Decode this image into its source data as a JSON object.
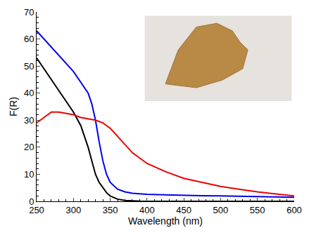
{
  "chart_data": {
    "type": "line",
    "x_label": "Wavelength (nm)",
    "y_label": "F(R)",
    "x": [
      250,
      260,
      270,
      280,
      290,
      300,
      310,
      320,
      325,
      330,
      335,
      340,
      345,
      350,
      360,
      370,
      380,
      390,
      400,
      425,
      450,
      475,
      500,
      525,
      550,
      575,
      600
    ],
    "series": [
      {
        "color": "#000000",
        "values": [
          53,
          49,
          45,
          41,
          37,
          33,
          28,
          20,
          15,
          10,
          7,
          5,
          3.2,
          2,
          0.8,
          0.3,
          0.1,
          0.05,
          0,
          0,
          0,
          0,
          0,
          0,
          0,
          0,
          0
        ]
      },
      {
        "color": "#0000ee",
        "values": [
          63,
          60,
          57,
          54,
          51,
          48,
          44,
          40,
          36,
          30,
          22,
          15,
          10,
          7,
          4.5,
          3.5,
          3,
          2.8,
          2.6,
          2.4,
          2.2,
          2.1,
          2,
          1.9,
          1.8,
          1.6,
          1.5
        ]
      },
      {
        "color": "#ee0000",
        "values": [
          29,
          31,
          33,
          33,
          32.5,
          32,
          31,
          30.5,
          30.2,
          30,
          29.5,
          29,
          28,
          27,
          24,
          21,
          18,
          16,
          14,
          11,
          8.5,
          7,
          5.5,
          4.5,
          3.5,
          2.7,
          2
        ]
      }
    ],
    "xlim": [
      250,
      600
    ],
    "xticks": [
      250,
      300,
      350,
      400,
      450,
      500,
      550,
      600
    ],
    "ylim": [
      0,
      70
    ],
    "yticks": [
      0,
      10,
      20,
      30,
      40,
      50,
      60,
      70
    ],
    "grid": false
  }
}
